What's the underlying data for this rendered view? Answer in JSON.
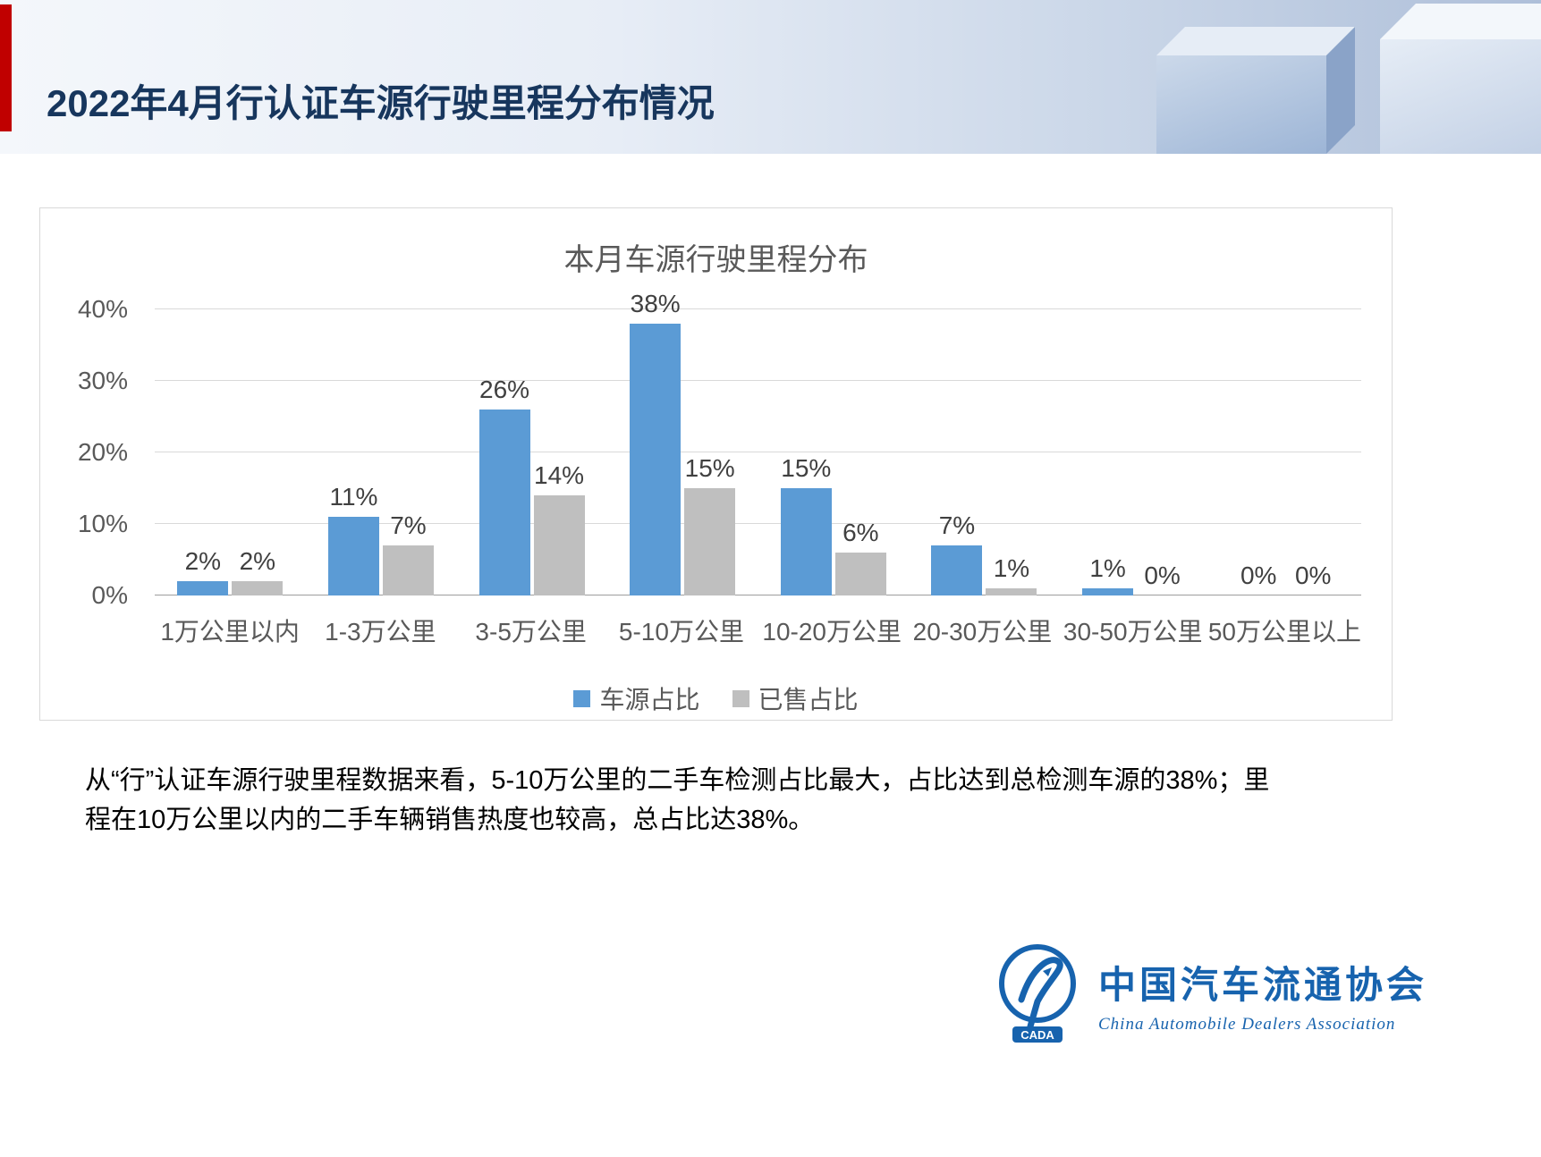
{
  "slide": {
    "title": "2022年4月行认证车源行驶里程分布情况",
    "accent_color": "#C00000",
    "title_color": "#17365D",
    "body_text": "从“行”认证车源行驶里程数据来看，5-10万公里的二手车检测占比最大，占比达到总检测车源的38%；里程在10万公里以内的二手车辆销售热度也较高，总占比达38%。"
  },
  "chart_data": {
    "type": "bar",
    "title": "本月车源行驶里程分布",
    "categories": [
      "1万公里以内",
      "1-3万公里",
      "3-5万公里",
      "5-10万公里",
      "10-20万公里",
      "20-30万公里",
      "30-50万公里",
      "50万公里以上"
    ],
    "series": [
      {
        "name": "车源占比",
        "color": "#5B9BD5",
        "values": [
          2,
          11,
          26,
          38,
          15,
          7,
          1,
          0
        ]
      },
      {
        "name": "已售占比",
        "color": "#BFBFBF",
        "values": [
          2,
          7,
          14,
          15,
          6,
          1,
          0,
          0
        ]
      }
    ],
    "xlabel": "",
    "ylabel": "",
    "ylim": [
      0,
      40
    ],
    "yticks": [
      "0%",
      "10%",
      "20%",
      "30%",
      "40%"
    ],
    "grid": true,
    "legend_position": "bottom",
    "value_suffix": "%"
  },
  "footer": {
    "org_name_cn": "中国汽车流通协会",
    "org_name_en": "China Automobile Dealers Association",
    "logo_acronym": "CADA",
    "logo_color": "#1763AE"
  }
}
